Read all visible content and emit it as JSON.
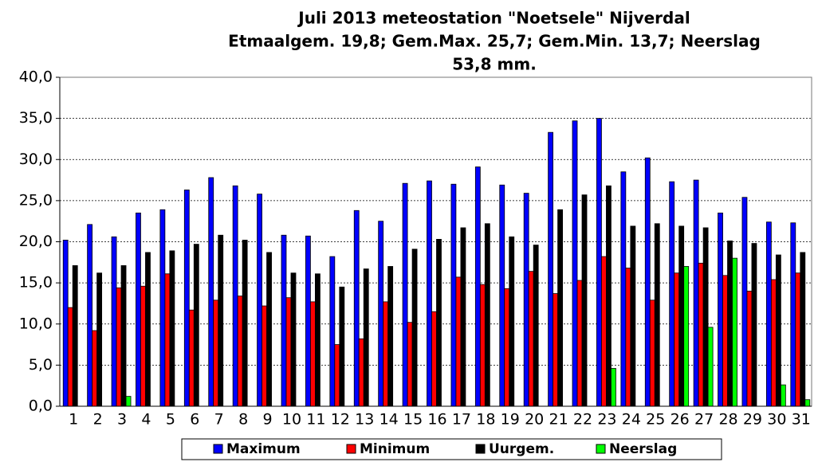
{
  "chart_data": {
    "type": "bar",
    "title": [
      "Juli 2013 meteostation \"Noetsele\" Nijverdal",
      "Etmaalgem. 19,8; Gem.Max. 25,7; Gem.Min. 13,7; Neerslag",
      "53,8 mm."
    ],
    "categories": [
      "1",
      "2",
      "3",
      "4",
      "5",
      "6",
      "7",
      "8",
      "9",
      "10",
      "11",
      "12",
      "13",
      "14",
      "15",
      "16",
      "17",
      "18",
      "19",
      "20",
      "21",
      "22",
      "23",
      "24",
      "25",
      "26",
      "27",
      "28",
      "29",
      "30",
      "31"
    ],
    "series": [
      {
        "name": "Maximum",
        "color": "#0000ff",
        "values": [
          20.2,
          22.1,
          20.6,
          23.5,
          23.9,
          26.3,
          27.8,
          26.8,
          25.8,
          20.8,
          20.7,
          18.2,
          23.8,
          22.5,
          27.1,
          27.4,
          27.0,
          29.1,
          26.9,
          25.9,
          33.3,
          34.7,
          35.0,
          28.5,
          30.2,
          27.3,
          27.5,
          23.5,
          25.4,
          22.4,
          22.3
        ]
      },
      {
        "name": "Minimum",
        "color": "#ff0000",
        "values": [
          12.0,
          9.2,
          14.4,
          14.6,
          16.1,
          11.7,
          12.9,
          13.4,
          12.2,
          13.2,
          12.7,
          7.5,
          8.2,
          12.7,
          10.2,
          11.5,
          15.7,
          14.8,
          14.3,
          16.4,
          13.7,
          15.3,
          18.2,
          16.8,
          12.9,
          16.2,
          17.4,
          15.9,
          14.0,
          15.4,
          16.2
        ]
      },
      {
        "name": "Uurgem.",
        "color": "#000000",
        "values": [
          17.1,
          16.2,
          17.1,
          18.7,
          18.9,
          19.7,
          20.8,
          20.2,
          18.7,
          16.2,
          16.1,
          14.5,
          16.7,
          17.0,
          19.1,
          20.3,
          21.7,
          22.2,
          20.6,
          19.6,
          23.9,
          25.7,
          26.8,
          21.9,
          22.2,
          21.9,
          21.7,
          20.1,
          19.8,
          18.4,
          18.7
        ]
      },
      {
        "name": "Neerslag",
        "color": "#00ff00",
        "values": [
          0,
          0,
          1.2,
          0,
          0,
          0,
          0,
          0,
          0,
          0,
          0,
          0,
          0,
          0,
          0,
          0,
          0,
          0,
          0,
          0,
          0,
          0,
          4.6,
          0,
          0,
          17.0,
          9.6,
          18.0,
          0,
          2.6,
          0.8
        ]
      }
    ],
    "ylim": [
      0,
      40
    ],
    "yticks": [
      {
        "value": 0,
        "label": "0,0"
      },
      {
        "value": 5,
        "label": "5,0"
      },
      {
        "value": 10,
        "label": "10,0"
      },
      {
        "value": 15,
        "label": "15,0"
      },
      {
        "value": 20,
        "label": "20,0"
      },
      {
        "value": 25,
        "label": "25,0"
      },
      {
        "value": 30,
        "label": "30,0"
      },
      {
        "value": 35,
        "label": "35,0"
      },
      {
        "value": 40,
        "label": "40,0"
      }
    ],
    "grid": true,
    "legend": "bottom"
  }
}
